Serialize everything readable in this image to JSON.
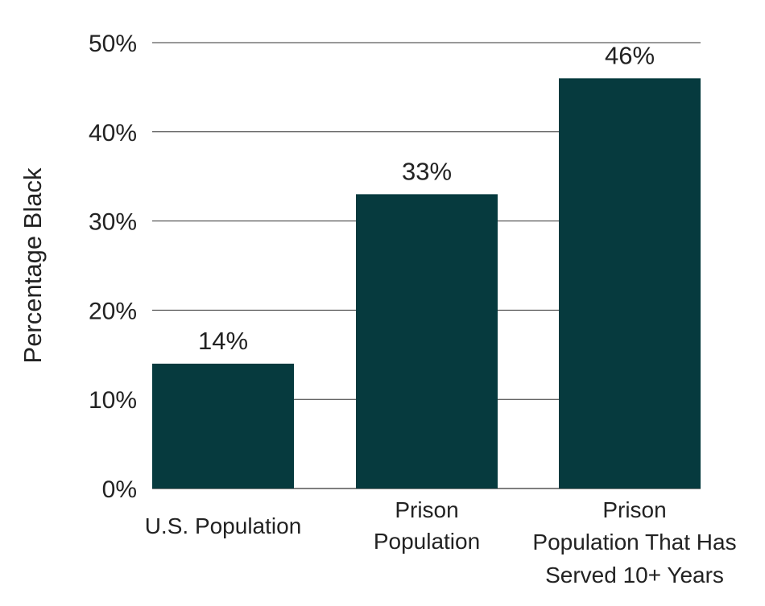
{
  "chart_data": {
    "type": "bar",
    "categories": [
      [
        "U.S. Population"
      ],
      [
        "Prison",
        "Population"
      ],
      [
        "Prison",
        "Population That Has",
        "Served 10+ Years"
      ]
    ],
    "values": [
      14,
      33,
      46
    ],
    "value_labels": [
      "14%",
      "33%",
      "46%"
    ],
    "ylabel": "Percentage Black",
    "ylim": [
      0,
      50
    ],
    "yticks": [
      0,
      10,
      20,
      30,
      40,
      50
    ],
    "ytick_labels": [
      "0%",
      "10%",
      "20%",
      "30%",
      "40%",
      "50%"
    ],
    "grid": true,
    "legend": false,
    "colors": {
      "bar": "#063a3e",
      "grid": "#333333",
      "text": "#222222"
    }
  }
}
